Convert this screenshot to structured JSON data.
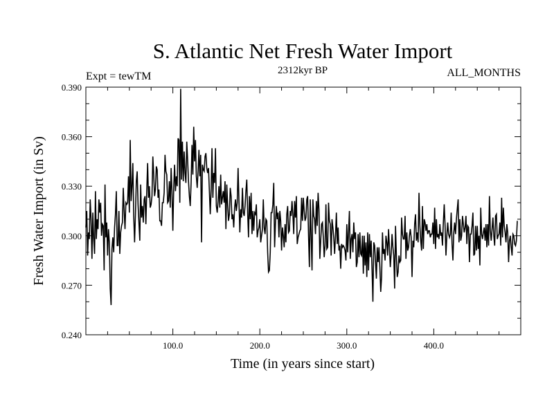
{
  "chart_data": {
    "type": "line",
    "title": "S. Atlantic Net Fresh Water Import",
    "subtitle_center": "2312kyr BP",
    "subtitle_left": "Expt = tewTM",
    "subtitle_right": "ALL_MONTHS",
    "xlabel": "Time (in years since start)",
    "ylabel": "Fresh Water Import (in Sv)",
    "xlim": [
      0,
      500
    ],
    "ylim": [
      0.24,
      0.39
    ],
    "x_ticks": [
      {
        "value": 100,
        "label": "100.0"
      },
      {
        "value": 200,
        "label": "200.0"
      },
      {
        "value": 300,
        "label": "300.0"
      },
      {
        "value": 400,
        "label": "400.0"
      }
    ],
    "y_ticks": [
      {
        "value": 0.24,
        "label": "0.240"
      },
      {
        "value": 0.27,
        "label": "0.270"
      },
      {
        "value": 0.3,
        "label": "0.300"
      },
      {
        "value": 0.33,
        "label": "0.330"
      },
      {
        "value": 0.36,
        "label": "0.360"
      },
      {
        "value": 0.39,
        "label": "0.390"
      }
    ],
    "series": [
      {
        "name": "Fresh Water Import",
        "color": "#000000",
        "x_start": 0,
        "x_step": 1,
        "values": [
          0.305,
          0.315,
          0.288,
          0.302,
          0.298,
          0.322,
          0.31,
          0.286,
          0.314,
          0.298,
          0.289,
          0.327,
          0.298,
          0.31,
          0.304,
          0.322,
          0.314,
          0.32,
          0.3,
          0.307,
          0.306,
          0.279,
          0.331,
          0.299,
          0.308,
          0.288,
          0.304,
          0.296,
          0.268,
          0.258,
          0.292,
          0.299,
          0.29,
          0.305,
          0.313,
          0.327,
          0.294,
          0.294,
          0.315,
          0.289,
          0.302,
          0.306,
          0.308,
          0.329,
          0.315,
          0.304,
          0.32,
          0.319,
          0.32,
          0.336,
          0.314,
          0.358,
          0.321,
          0.33,
          0.344,
          0.312,
          0.296,
          0.313,
          0.333,
          0.339,
          0.319,
          0.308,
          0.297,
          0.331,
          0.311,
          0.318,
          0.308,
          0.322,
          0.324,
          0.307,
          0.327,
          0.344,
          0.323,
          0.33,
          0.317,
          0.319,
          0.324,
          0.348,
          0.337,
          0.324,
          0.328,
          0.342,
          0.34,
          0.323,
          0.328,
          0.309,
          0.309,
          0.306,
          0.32,
          0.32,
          0.326,
          0.349,
          0.339,
          0.337,
          0.32,
          0.321,
          0.333,
          0.317,
          0.341,
          0.327,
          0.303,
          0.329,
          0.343,
          0.327,
          0.336,
          0.33,
          0.359,
          0.358,
          0.32,
          0.389,
          0.334,
          0.357,
          0.333,
          0.351,
          0.338,
          0.332,
          0.357,
          0.346,
          0.333,
          0.324,
          0.318,
          0.332,
          0.355,
          0.337,
          0.366,
          0.345,
          0.358,
          0.336,
          0.329,
          0.339,
          0.352,
          0.336,
          0.349,
          0.296,
          0.343,
          0.34,
          0.339,
          0.348,
          0.35,
          0.341,
          0.338,
          0.341,
          0.327,
          0.313,
          0.328,
          0.353,
          0.323,
          0.338,
          0.332,
          0.353,
          0.318,
          0.314,
          0.321,
          0.33,
          0.317,
          0.337,
          0.319,
          0.323,
          0.327,
          0.32,
          0.333,
          0.304,
          0.331,
          0.319,
          0.309,
          0.313,
          0.329,
          0.324,
          0.31,
          0.313,
          0.305,
          0.317,
          0.322,
          0.315,
          0.32,
          0.341,
          0.321,
          0.302,
          0.316,
          0.311,
          0.329,
          0.314,
          0.312,
          0.318,
          0.327,
          0.334,
          0.314,
          0.299,
          0.324,
          0.31,
          0.326,
          0.301,
          0.315,
          0.303,
          0.314,
          0.313,
          0.319,
          0.299,
          0.303,
          0.305,
          0.31,
          0.296,
          0.3,
          0.304,
          0.322,
          0.305,
          0.301,
          0.31,
          0.309,
          0.29,
          0.278,
          0.279,
          0.29,
          0.314,
          0.314,
          0.319,
          0.332,
          0.293,
          0.308,
          0.318,
          0.31,
          0.314,
          0.299,
          0.315,
          0.309,
          0.291,
          0.305,
          0.3,
          0.293,
          0.307,
          0.296,
          0.313,
          0.318,
          0.302,
          0.303,
          0.315,
          0.312,
          0.321,
          0.313,
          0.301,
          0.321,
          0.311,
          0.324,
          0.295,
          0.299,
          0.301,
          0.303,
          0.304,
          0.323,
          0.309,
          0.323,
          0.315,
          0.309,
          0.311,
          0.322,
          0.324,
          0.3,
          0.281,
          0.322,
          0.3,
          0.279,
          0.322,
          0.312,
          0.31,
          0.301,
          0.321,
          0.306,
          0.326,
          0.316,
          0.286,
          0.297,
          0.307,
          0.308,
          0.299,
          0.287,
          0.294,
          0.319,
          0.292,
          0.293,
          0.32,
          0.309,
          0.307,
          0.288,
          0.31,
          0.305,
          0.299,
          0.289,
          0.3,
          0.314,
          0.295,
          0.305,
          0.291,
          0.294,
          0.28,
          0.295,
          0.293,
          0.294,
          0.293,
          0.291,
          0.285,
          0.307,
          0.29,
          0.302,
          0.315,
          0.286,
          0.298,
          0.301,
          0.29,
          0.308,
          0.298,
          0.302,
          0.281,
          0.284,
          0.301,
          0.287,
          0.302,
          0.289,
          0.288,
          0.3,
          0.277,
          0.3,
          0.282,
          0.296,
          0.275,
          0.302,
          0.279,
          0.301,
          0.287,
          0.297,
          0.28,
          0.26,
          0.296,
          0.294,
          0.284,
          0.274,
          0.293,
          0.284,
          0.293,
          0.281,
          0.266,
          0.275,
          0.302,
          0.289,
          0.292,
          0.285,
          0.3,
          0.296,
          0.288,
          0.304,
          0.293,
          0.281,
          0.289,
          0.301,
          0.293,
          0.288,
          0.268,
          0.306,
          0.288,
          0.275,
          0.278,
          0.288,
          0.284,
          0.285,
          0.311,
          0.301,
          0.298,
          0.298,
          0.312,
          0.286,
          0.302,
          0.291,
          0.293,
          0.3,
          0.304,
          0.299,
          0.275,
          0.297,
          0.293,
          0.307,
          0.313,
          0.297,
          0.302,
          0.296,
          0.326,
          0.306,
          0.297,
          0.291,
          0.318,
          0.292,
          0.31,
          0.308,
          0.303,
          0.307,
          0.301,
          0.303,
          0.303,
          0.299,
          0.301,
          0.301,
          0.308,
          0.295,
          0.317,
          0.292,
          0.31,
          0.299,
          0.301,
          0.298,
          0.307,
          0.3,
          0.302,
          0.294,
          0.308,
          0.319,
          0.306,
          0.288,
          0.3,
          0.308,
          0.301,
          0.299,
          0.301,
          0.314,
          0.295,
          0.285,
          0.302,
          0.308,
          0.301,
          0.31,
          0.316,
          0.322,
          0.296,
          0.31,
          0.297,
          0.3,
          0.312,
          0.307,
          0.302,
          0.305,
          0.312,
          0.295,
          0.306,
          0.305,
          0.284,
          0.301,
          0.301,
          0.306,
          0.314,
          0.288,
          0.289,
          0.306,
          0.291,
          0.306,
          0.292,
          0.3,
          0.282,
          0.317,
          0.301,
          0.298,
          0.302,
          0.305,
          0.297,
          0.307,
          0.293,
          0.307,
          0.294,
          0.324,
          0.303,
          0.297,
          0.304,
          0.311,
          0.3,
          0.294,
          0.312,
          0.313,
          0.298,
          0.3,
          0.301,
          0.308,
          0.294,
          0.323,
          0.299,
          0.317,
          0.306,
          0.302,
          0.296,
          0.307,
          0.302,
          0.284,
          0.297,
          0.3,
          0.293,
          0.288,
          0.301,
          0.3,
          0.295,
          0.294,
          0.297,
          0.309
        ]
      }
    ]
  }
}
